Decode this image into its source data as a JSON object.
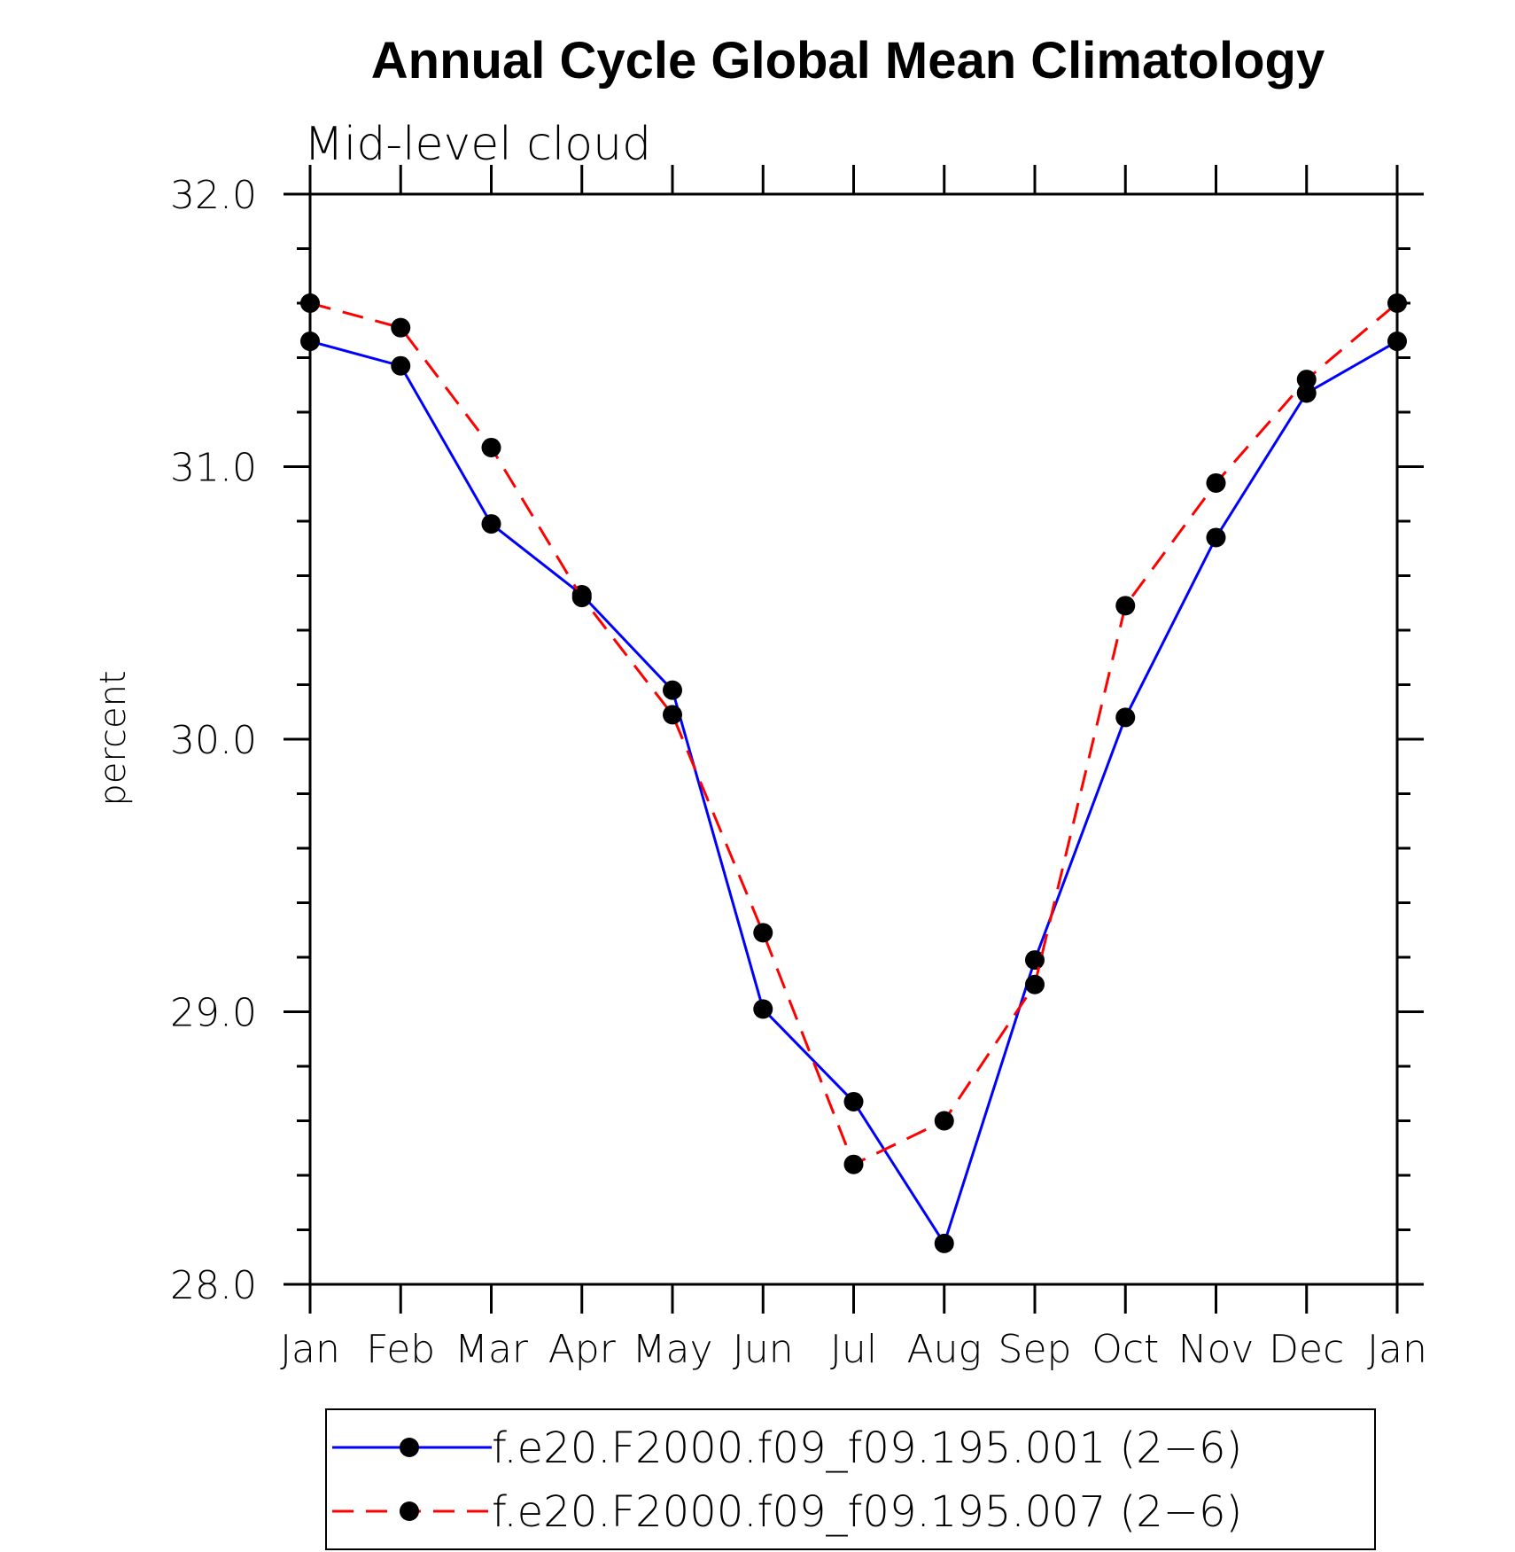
{
  "chart_data": {
    "type": "line",
    "title": "Annual Cycle Global Mean Climatology",
    "subtitle": "Mid-level cloud",
    "xlabel": "",
    "ylabel": "percent",
    "categories": [
      "Jan",
      "Feb",
      "Mar",
      "Apr",
      "May",
      "Jun",
      "Jul",
      "Aug",
      "Sep",
      "Oct",
      "Nov",
      "Dec",
      "Jan"
    ],
    "ylim": [
      28.0,
      32.0
    ],
    "yticks": [
      "28.0",
      "29.0",
      "30.0",
      "31.0",
      "32.0"
    ],
    "grid": false,
    "legend_position": "bottom",
    "series": [
      {
        "name": "f.e20.F2000.f09_f09.195.001 (2−6)",
        "color": "#0000ff",
        "dash": "solid",
        "marker": "filled-circle",
        "values": [
          31.46,
          31.37,
          30.79,
          30.53,
          30.18,
          29.01,
          28.67,
          28.15,
          29.19,
          30.08,
          30.74,
          31.27,
          31.46
        ]
      },
      {
        "name": "f.e20.F2000.f09_f09.195.007 (2−6)",
        "color": "#ff0000",
        "dash": "dashed",
        "marker": "filled-circle",
        "values": [
          31.6,
          31.51,
          31.07,
          30.52,
          30.09,
          29.29,
          28.44,
          28.6,
          29.1,
          30.49,
          30.94,
          31.32,
          31.6
        ]
      }
    ]
  }
}
